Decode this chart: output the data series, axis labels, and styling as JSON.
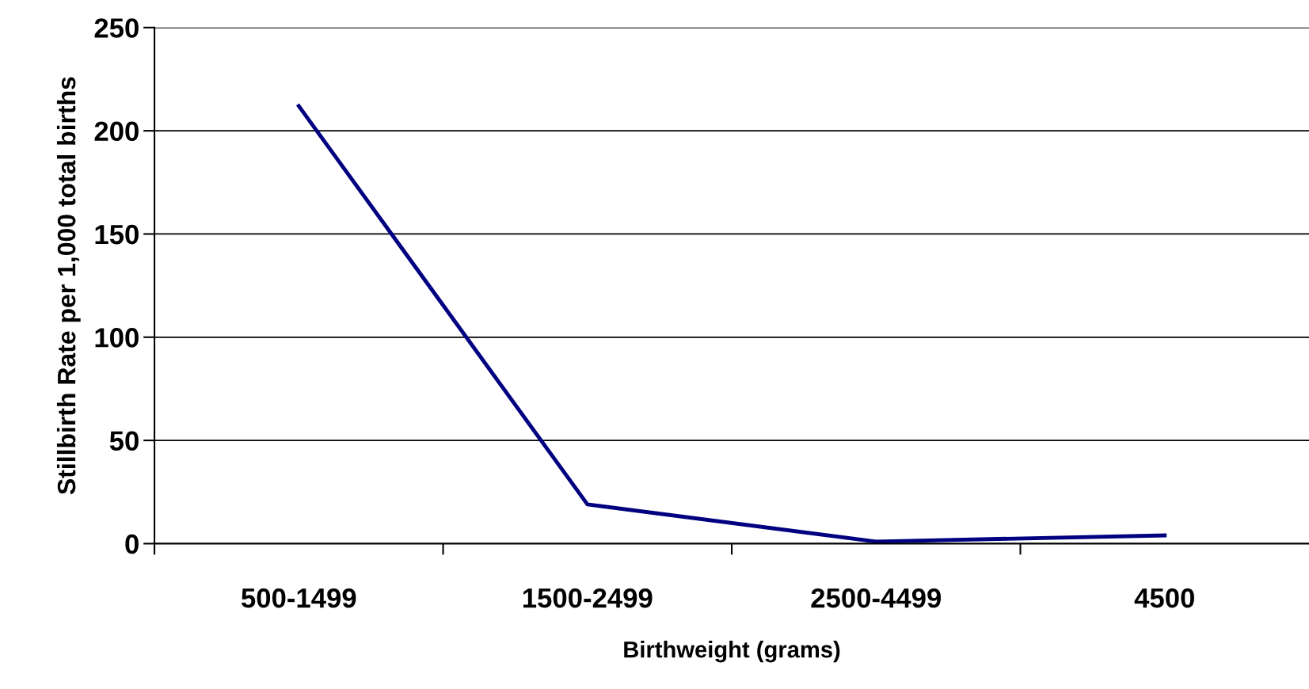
{
  "chart_data": {
    "type": "line",
    "xlabel": "Birthweight (grams)",
    "ylabel": "Stillbirth Rate per 1,000 total births",
    "categories": [
      "500-1499",
      "1500-2499",
      "2500-4499",
      "4500"
    ],
    "series": [
      {
        "color": "#000080",
        "values": [
          212,
          19,
          1,
          4
        ]
      }
    ],
    "ylim": [
      0,
      250
    ],
    "yticks": [
      0,
      50,
      100,
      150,
      200,
      250
    ],
    "grid": "y",
    "marker": "none",
    "line_style": "solid"
  }
}
